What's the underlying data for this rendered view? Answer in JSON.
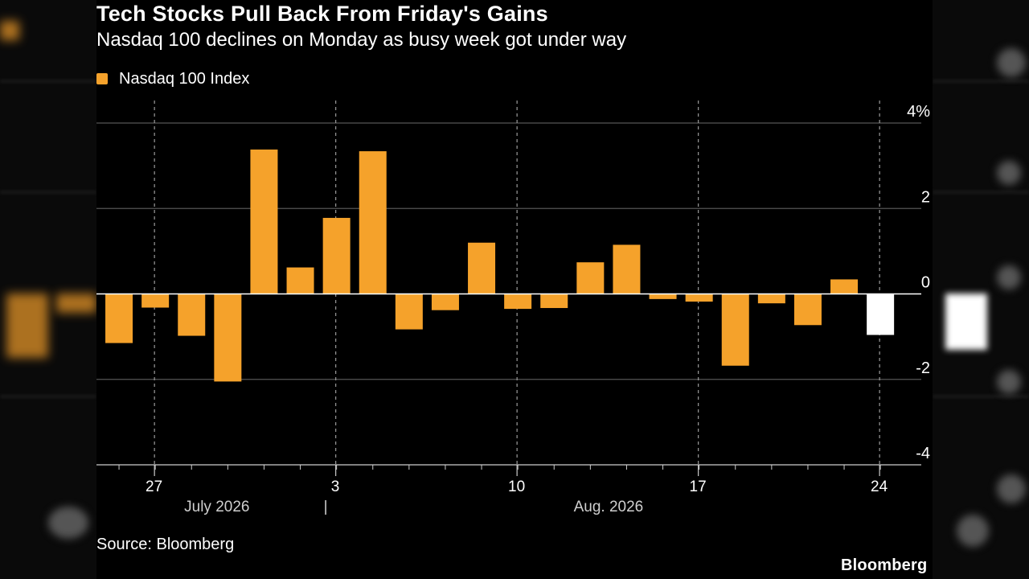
{
  "title": "Tech Stocks Pull Back From Friday's Gains",
  "subtitle": "Nasdaq 100 declines on Monday as busy week got under way",
  "legend": {
    "label": "Nasdaq 100 Index",
    "color": "#f5a22b"
  },
  "source": "Source: Bloomberg",
  "brand": "Bloomberg",
  "colors": {
    "bar": "#f5a22b",
    "highlight": "#ffffff",
    "background": "#000000",
    "grid": "#555555",
    "axis": "#cccccc"
  },
  "chart_data": {
    "type": "bar",
    "title": "Tech Stocks Pull Back From Friday's Gains",
    "subtitle": "Nasdaq 100 declines on Monday as busy week got under way",
    "xlabel": "",
    "ylabel": "",
    "ylim": [
      -4,
      4
    ],
    "y_ticks": [
      {
        "value": 4,
        "label": "4%"
      },
      {
        "value": 2,
        "label": "2"
      },
      {
        "value": 0,
        "label": "0"
      },
      {
        "value": -2,
        "label": "-2"
      },
      {
        "value": -4,
        "label": "-4"
      }
    ],
    "x_ticks": [
      {
        "slot": 1.5,
        "label": "27"
      },
      {
        "slot": 6.5,
        "label": "3"
      },
      {
        "slot": 11.5,
        "label": "10"
      },
      {
        "slot": 16.5,
        "label": "17"
      },
      {
        "slot": 21.5,
        "label": "24"
      }
    ],
    "months": [
      {
        "label": "July 2026",
        "slot": 3.2
      },
      {
        "label": "Aug. 2026",
        "slot": 14.0
      }
    ],
    "month_divider": {
      "label": "|",
      "slot": 6.2
    },
    "series": [
      {
        "name": "Nasdaq 100 Index",
        "values": [
          -1.15,
          -0.32,
          -0.98,
          -2.05,
          3.38,
          0.62,
          1.78,
          3.34,
          -0.83,
          -0.38,
          1.2,
          -0.35,
          -0.33,
          0.74,
          1.15,
          -0.12,
          -0.18,
          -1.68,
          -0.22,
          -0.73,
          0.34,
          -0.96
        ],
        "highlight_index": 21
      }
    ],
    "grid": true,
    "legend_position": "top-left"
  }
}
